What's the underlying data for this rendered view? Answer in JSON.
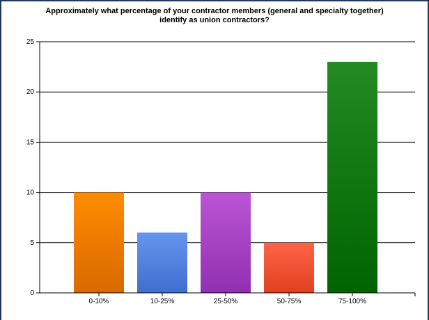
{
  "chart_data": {
    "type": "bar",
    "title_lines": [
      "Approximately what percentage of your contractor members (general and specialty together)",
      "identify as union contractors?"
    ],
    "categories": [
      "0-10%",
      "10-25%",
      "25-50%",
      "50-75%",
      "75-100%"
    ],
    "values": [
      10,
      6,
      10,
      5,
      23
    ],
    "colors": [
      [
        "#ff8c00",
        "#d86a00"
      ],
      [
        "#6495ed",
        "#3f6fcf"
      ],
      [
        "#ba55d3",
        "#9030b0"
      ],
      [
        "#ff6347",
        "#e0401f"
      ],
      [
        "#228b22",
        "#006400"
      ]
    ],
    "ylim": [
      0,
      25
    ],
    "yticks": [
      "0",
      "5",
      "10",
      "15",
      "20",
      "25"
    ],
    "grid": true,
    "legend": "none"
  }
}
